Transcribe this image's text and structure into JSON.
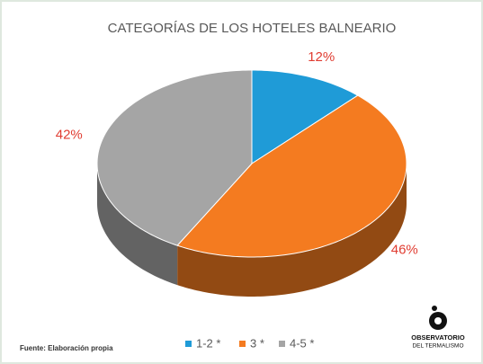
{
  "chart_data": {
    "type": "pie",
    "title": "CATEGORÍAS DE LOS HOTELES BALNEARIO",
    "categories": [
      "1-2 *",
      "3 *",
      "4-5 *"
    ],
    "values": [
      12,
      46,
      42
    ],
    "value_labels": [
      "12%",
      "46%",
      "42%"
    ],
    "colors": [
      "#1f9bd7",
      "#f47b20",
      "#a5a5a5"
    ],
    "legend": "bottom",
    "source": "Fuente: Elaboración propia",
    "logo": {
      "line1": "OBSERVATORIO",
      "line2": "DEL TERMALISMO"
    }
  }
}
